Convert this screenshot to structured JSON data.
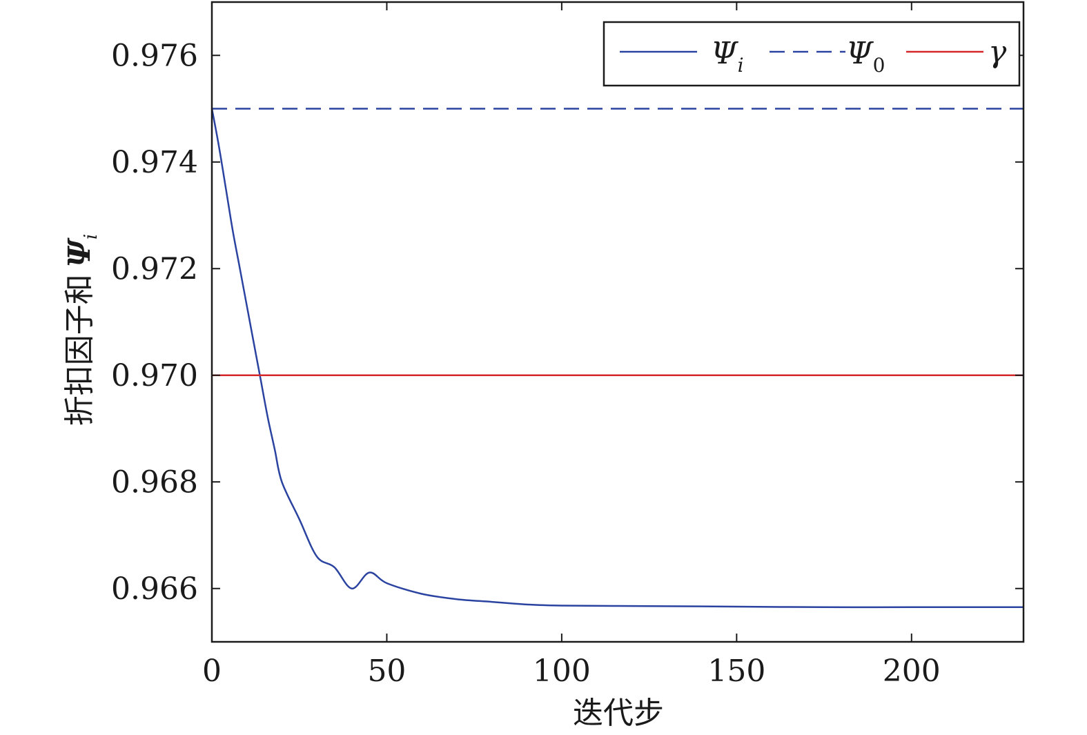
{
  "chart_data": {
    "type": "line",
    "xlabel": "迭代步",
    "ylabel": "折扣因子和",
    "ylabel_symbol": "Ψ",
    "ylabel_subscript": "i",
    "xlim": [
      0,
      232
    ],
    "ylim": [
      0.965,
      0.977
    ],
    "xticks": [
      0,
      50,
      100,
      150,
      200
    ],
    "xtick_labels": [
      "0",
      "50",
      "100",
      "150",
      "200"
    ],
    "yticks": [
      0.966,
      0.968,
      0.97,
      0.972,
      0.974,
      0.976
    ],
    "ytick_labels": [
      "0.966",
      "0.968",
      "0.970",
      "0.972",
      "0.974",
      "0.976"
    ],
    "grid": false,
    "legend_position": "top-right",
    "series": [
      {
        "name": "Ψ",
        "subscript": "i",
        "style": "solid",
        "color": "#2a43a0",
        "x": [
          0,
          2,
          4,
          6,
          8,
          10,
          12,
          14,
          16,
          18,
          20,
          25,
          30,
          35,
          40,
          45,
          50,
          60,
          70,
          80,
          90,
          100,
          125,
          150,
          175,
          200,
          232
        ],
        "y": [
          0.975,
          0.9743,
          0.9735,
          0.9727,
          0.972,
          0.9713,
          0.9706,
          0.9699,
          0.9692,
          0.9686,
          0.968,
          0.9673,
          0.9666,
          0.9664,
          0.966,
          0.9663,
          0.9661,
          0.9659,
          0.9658,
          0.96575,
          0.9657,
          0.96568,
          0.96567,
          0.96566,
          0.96565,
          0.96565,
          0.96565
        ]
      },
      {
        "name": "Ψ",
        "subscript": "0",
        "style": "dashed",
        "color": "#2a43a0",
        "x": [
          0,
          232
        ],
        "y": [
          0.975,
          0.975
        ]
      },
      {
        "name": "γ",
        "subscript": "",
        "style": "solid",
        "color": "#d62728",
        "x": [
          0,
          232
        ],
        "y": [
          0.97,
          0.97
        ]
      }
    ]
  }
}
